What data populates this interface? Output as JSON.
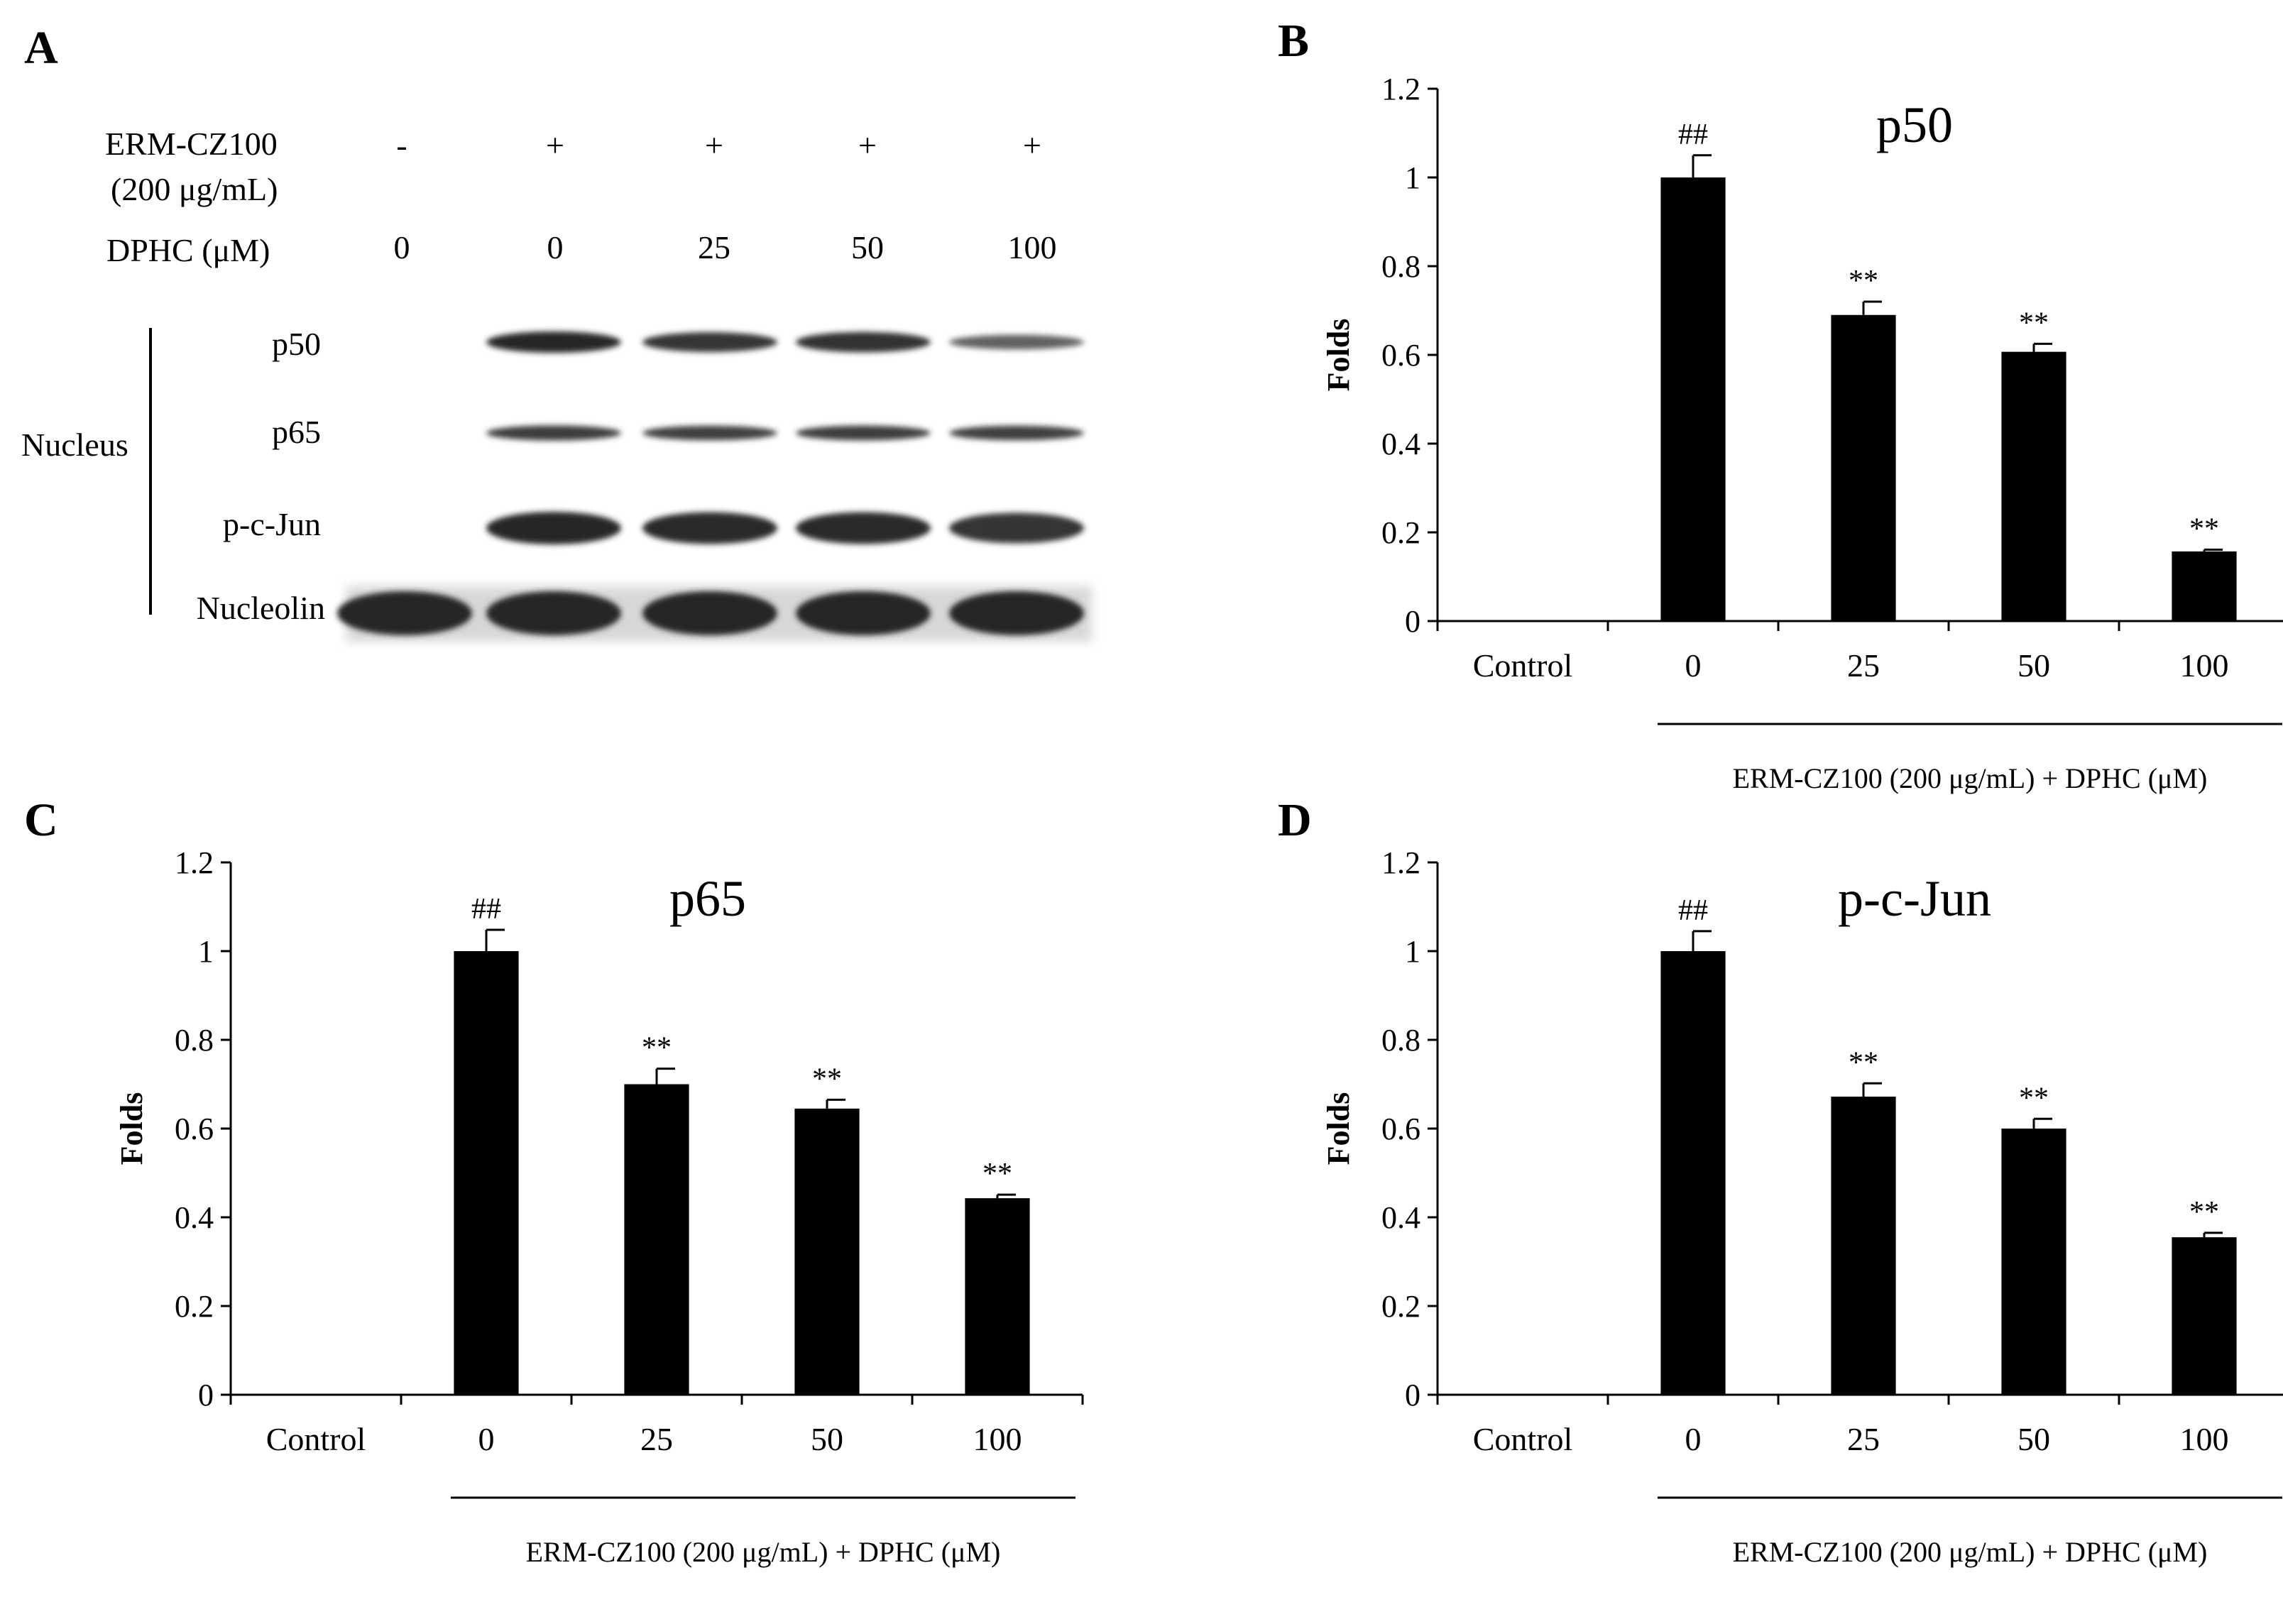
{
  "panels": {
    "a": {
      "letter": "A"
    },
    "b": {
      "letter": "B"
    },
    "c": {
      "letter": "C"
    },
    "d": {
      "letter": "D"
    }
  },
  "blot": {
    "row1_label": "ERM-CZ100",
    "row1_sublabel": "(200 μg/mL)",
    "row1_values": [
      "-",
      "+",
      "+",
      "+",
      "+"
    ],
    "row2_label": "DPHC (μM)",
    "row2_values": [
      "0",
      "0",
      "25",
      "50",
      "100"
    ],
    "group_label": "Nucleus",
    "band_labels": [
      "p50",
      "p65",
      "p-c-Jun",
      "Nucleolin"
    ],
    "band_intensity": [
      [
        0,
        1.0,
        0.85,
        0.9,
        0.3
      ],
      [
        0,
        0.75,
        0.7,
        0.72,
        0.7
      ],
      [
        0,
        1.0,
        0.95,
        0.95,
        0.85
      ],
      [
        1.0,
        1.0,
        1.0,
        1.0,
        1.0
      ]
    ]
  },
  "chart_data": [
    {
      "type": "bar",
      "panel": "B",
      "title": "p50",
      "ylabel": "Folds",
      "xlabel": "ERM-CZ100 (200 μg/mL) + DPHC (μM)",
      "categories": [
        "Control",
        "0",
        "25",
        "50",
        "100"
      ],
      "values": [
        0,
        1.0,
        0.69,
        0.607,
        0.157
      ],
      "errors": [
        0,
        0.05,
        0.03,
        0.018,
        0.004
      ],
      "annotations": [
        "",
        "##",
        "**",
        "**",
        "**"
      ],
      "ylim": [
        0,
        1.2
      ],
      "yticks": [
        "0",
        "0.2",
        "0.4",
        "0.6",
        "0.8",
        "1",
        "1.2"
      ]
    },
    {
      "type": "bar",
      "panel": "C",
      "title": "p65",
      "ylabel": "Folds",
      "xlabel": "ERM-CZ100 (200 μg/mL) + DPHC (μM)",
      "categories": [
        "Control",
        "0",
        "25",
        "50",
        "100"
      ],
      "values": [
        0,
        1.0,
        0.7,
        0.645,
        0.443
      ],
      "errors": [
        0,
        0.048,
        0.035,
        0.02,
        0.008
      ],
      "annotations": [
        "",
        "##",
        "**",
        "**",
        "**"
      ],
      "ylim": [
        0,
        1.2
      ],
      "yticks": [
        "0",
        "0.2",
        "0.4",
        "0.6",
        "0.8",
        "1",
        "1.2"
      ]
    },
    {
      "type": "bar",
      "panel": "D",
      "title": "p-c-Jun",
      "ylabel": "Folds",
      "xlabel": "ERM-CZ100 (200 μg/mL) + DPHC (μM)",
      "categories": [
        "Control",
        "0",
        "25",
        "50",
        "100"
      ],
      "values": [
        0,
        1.0,
        0.672,
        0.6,
        0.355
      ],
      "errors": [
        0,
        0.045,
        0.03,
        0.022,
        0.01
      ],
      "annotations": [
        "",
        "##",
        "**",
        "**",
        "**"
      ],
      "ylim": [
        0,
        1.2
      ],
      "yticks": [
        "0",
        "0.2",
        "0.4",
        "0.6",
        "0.8",
        "1",
        "1.2"
      ]
    }
  ]
}
